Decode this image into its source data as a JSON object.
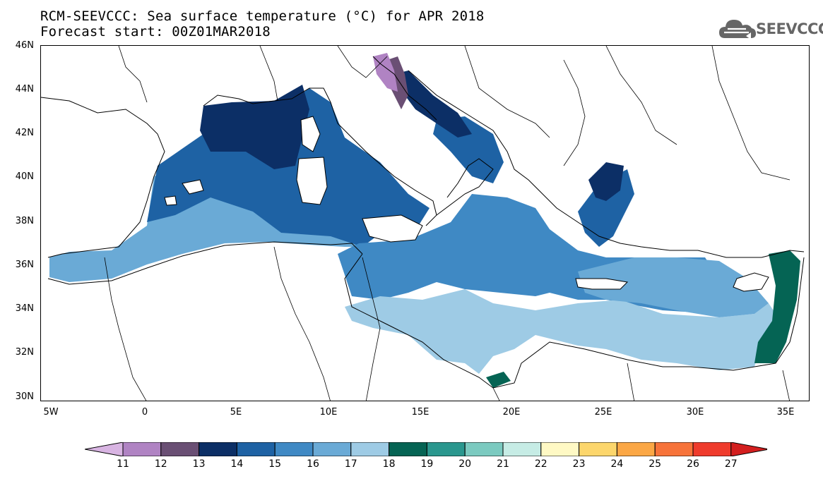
{
  "header": {
    "title_line1": "RCM-SEEVCCC: Sea surface temperature (°C) for APR 2018",
    "title_line2": "Forecast start: 00Z01MAR2018",
    "logo_text": "SEEVCCC"
  },
  "map": {
    "projection": "cylindrical equidistant",
    "lon_range": [
      -5.5,
      36.5
    ],
    "lat_range": [
      29.7,
      46
    ],
    "lat_labels": [
      "46N",
      "44N",
      "42N",
      "40N",
      "38N",
      "36N",
      "34N",
      "32N",
      "30N"
    ],
    "lat_values": [
      46,
      44,
      42,
      40,
      38,
      36,
      34,
      32,
      30
    ],
    "lon_labels": [
      "5W",
      "0",
      "5E",
      "10E",
      "15E",
      "20E",
      "25E",
      "30E",
      "35E"
    ],
    "lon_values": [
      -5,
      0,
      5,
      10,
      15,
      20,
      25,
      30,
      35
    ]
  },
  "colorbar": {
    "labels": [
      "11",
      "12",
      "13",
      "14",
      "15",
      "16",
      "17",
      "18",
      "19",
      "20",
      "21",
      "22",
      "23",
      "24",
      "25",
      "26",
      "27"
    ],
    "colors": [
      "#d8b4e2",
      "#b083c3",
      "#6a4f74",
      "#0c2f66",
      "#1e62a4",
      "#3f89c4",
      "#6aaad6",
      "#9ecbe5",
      "#056454",
      "#2a978e",
      "#7bcac0",
      "#c6ece5",
      "#fff9c4",
      "#fcd66c",
      "#fba745",
      "#f7733a",
      "#ef3b2c",
      "#d31f1f"
    ]
  }
}
